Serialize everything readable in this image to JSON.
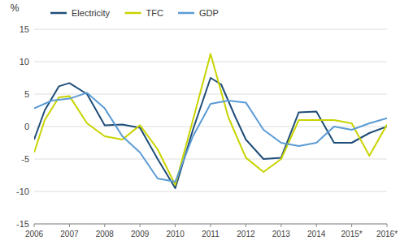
{
  "chart_data": {
    "type": "line",
    "y_label": "%",
    "series": [
      {
        "name": "Electricity",
        "color": "#1f4e79",
        "x": [
          2006,
          2006.3,
          2006.7,
          2007,
          2007.5,
          2008,
          2008.5,
          2009,
          2009.5,
          2010,
          2010.5,
          2011,
          2011.3,
          2011.7,
          2012,
          2012.5,
          2013,
          2013.5,
          2014,
          2014.5,
          2015,
          2015.5,
          2016
        ],
        "values": [
          -2.0,
          2.5,
          6.2,
          6.7,
          5.0,
          0.2,
          0.3,
          -0.2,
          -5.0,
          -9.5,
          -0.5,
          7.5,
          6.5,
          1.5,
          -2.0,
          -5.0,
          -4.8,
          2.2,
          2.3,
          -2.5,
          -2.5,
          -1.0,
          0.0
        ]
      },
      {
        "name": "TFC",
        "color": "#c8d400",
        "x": [
          2006,
          2006.3,
          2006.7,
          2007,
          2007.5,
          2008,
          2008.5,
          2009,
          2009.5,
          2010,
          2010.5,
          2011,
          2011.5,
          2012,
          2012.5,
          2013,
          2013.5,
          2014,
          2014.5,
          2015,
          2015.5,
          2016
        ],
        "values": [
          -4.0,
          1.0,
          4.5,
          4.7,
          0.5,
          -1.5,
          -2.0,
          0.2,
          -3.5,
          -9.0,
          1.0,
          11.2,
          1.5,
          -4.8,
          -7.0,
          -5.0,
          1.0,
          1.0,
          1.0,
          0.5,
          -4.5,
          0.3
        ]
      },
      {
        "name": "GDP",
        "color": "#5b9bd5",
        "x": [
          2006,
          2006.5,
          2007,
          2007.5,
          2008,
          2008.5,
          2009,
          2009.5,
          2010,
          2010.5,
          2011,
          2011.5,
          2012,
          2012.5,
          2013,
          2013.5,
          2014,
          2014.5,
          2015,
          2015.5,
          2016
        ],
        "values": [
          2.8,
          4.0,
          4.3,
          5.2,
          2.8,
          -1.5,
          -4.0,
          -8.0,
          -8.5,
          -1.5,
          3.5,
          4.0,
          3.7,
          -0.5,
          -2.5,
          -3.0,
          -2.5,
          0.0,
          -0.5,
          0.5,
          1.3
        ]
      }
    ],
    "xlim": [
      2006,
      2016
    ],
    "xticks": [
      2006,
      2007,
      2008,
      2009,
      2010,
      2011,
      2012,
      2013,
      2014,
      {
        "value": 2015,
        "label": "2015*"
      },
      {
        "value": 2016,
        "label": "2016*"
      }
    ],
    "ylim": [
      -15,
      15
    ],
    "yticks": [
      -15,
      -10,
      -5,
      0,
      5,
      10,
      15
    ],
    "grid": true,
    "legend": "top-left"
  }
}
